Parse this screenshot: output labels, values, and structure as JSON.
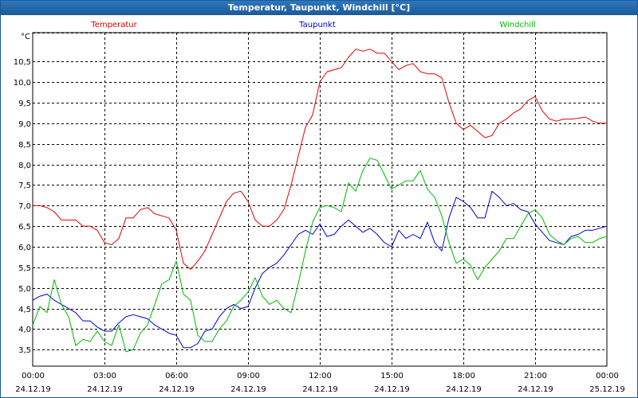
{
  "window": {
    "title": "Temperatur, Taupunkt, Windchill [°C]"
  },
  "chart_data": {
    "type": "line",
    "title": "Temperatur, Taupunkt, Windchill [°C]",
    "ylabel": "°C",
    "ylim": [
      3.1,
      11.2
    ],
    "yticks": [
      3.5,
      4.0,
      4.5,
      5.0,
      5.5,
      6.0,
      6.5,
      7.0,
      7.5,
      8.0,
      8.5,
      9.0,
      9.5,
      10.0,
      10.5
    ],
    "ytick_labels": [
      "3,5",
      "4,0",
      "4,5",
      "5,0",
      "5,5",
      "6,0",
      "6,5",
      "7,0",
      "7,5",
      "8,0",
      "8,5",
      "9,0",
      "9,5",
      "10,0",
      "10,5"
    ],
    "xlim": [
      0,
      24
    ],
    "xticks": [
      0,
      3,
      6,
      9,
      12,
      15,
      18,
      21,
      24
    ],
    "xtick_time_labels": [
      "00:00",
      "03:00",
      "06:00",
      "09:00",
      "12:00",
      "15:00",
      "18:00",
      "21:00",
      "00:00"
    ],
    "xtick_date_labels": [
      "24.12.19",
      "24.12.19",
      "24.12.19",
      "24.12.19",
      "24.12.19",
      "24.12.19",
      "24.12.19",
      "24.12.19",
      "25.12.19"
    ],
    "grid": true,
    "series": [
      {
        "name": "Temperatur",
        "color": "#dd0000",
        "x": [
          0,
          0.3,
          0.6,
          0.9,
          1.2,
          1.5,
          1.8,
          2.1,
          2.4,
          2.7,
          3.0,
          3.3,
          3.6,
          3.9,
          4.2,
          4.5,
          4.8,
          5.1,
          5.4,
          5.7,
          6.0,
          6.3,
          6.6,
          6.9,
          7.2,
          7.5,
          7.8,
          8.1,
          8.4,
          8.7,
          9.0,
          9.3,
          9.6,
          9.9,
          10.2,
          10.5,
          10.8,
          11.1,
          11.4,
          11.7,
          12.0,
          12.3,
          12.6,
          12.9,
          13.2,
          13.5,
          13.8,
          14.1,
          14.4,
          14.7,
          15.0,
          15.3,
          15.6,
          15.9,
          16.2,
          16.5,
          16.8,
          17.1,
          17.4,
          17.7,
          18.0,
          18.3,
          18.6,
          18.9,
          19.2,
          19.5,
          19.8,
          20.1,
          20.4,
          20.7,
          21.0,
          21.3,
          21.6,
          21.9,
          22.2,
          22.5,
          22.8,
          23.1,
          23.4,
          23.7,
          24.0
        ],
        "values": [
          7.0,
          7.0,
          6.95,
          6.85,
          6.65,
          6.65,
          6.65,
          6.5,
          6.5,
          6.4,
          6.1,
          6.05,
          6.2,
          6.7,
          6.7,
          6.9,
          6.95,
          6.8,
          6.75,
          6.7,
          6.4,
          5.6,
          5.45,
          5.65,
          5.9,
          6.3,
          6.7,
          7.1,
          7.3,
          7.35,
          7.1,
          6.65,
          6.5,
          6.5,
          6.65,
          6.9,
          7.5,
          8.2,
          8.9,
          9.2,
          10.0,
          10.25,
          10.3,
          10.35,
          10.6,
          10.8,
          10.75,
          10.8,
          10.7,
          10.7,
          10.5,
          10.3,
          10.4,
          10.45,
          10.25,
          10.2,
          10.2,
          10.1,
          9.5,
          9.0,
          8.85,
          8.95,
          8.8,
          8.65,
          8.7,
          9.0,
          9.1,
          9.25,
          9.35,
          9.55,
          9.65,
          9.3,
          9.1,
          9.05,
          9.1,
          9.1,
          9.12,
          9.15,
          9.05,
          9.0,
          9.0
        ]
      },
      {
        "name": "Taupunkt",
        "color": "#0000cc",
        "x": [
          0,
          0.3,
          0.6,
          0.9,
          1.2,
          1.5,
          1.8,
          2.1,
          2.4,
          2.7,
          3.0,
          3.3,
          3.6,
          3.9,
          4.2,
          4.5,
          4.8,
          5.1,
          5.4,
          5.7,
          6.0,
          6.3,
          6.6,
          6.9,
          7.2,
          7.5,
          7.8,
          8.1,
          8.4,
          8.7,
          9.0,
          9.3,
          9.6,
          9.9,
          10.2,
          10.5,
          10.8,
          11.1,
          11.4,
          11.7,
          12.0,
          12.3,
          12.6,
          12.9,
          13.2,
          13.5,
          13.8,
          14.1,
          14.4,
          14.7,
          15.0,
          15.3,
          15.6,
          15.9,
          16.2,
          16.5,
          16.8,
          17.1,
          17.4,
          17.7,
          18.0,
          18.3,
          18.6,
          18.9,
          19.2,
          19.5,
          19.8,
          20.1,
          20.4,
          20.7,
          21.0,
          21.3,
          21.6,
          21.9,
          22.2,
          22.5,
          22.8,
          23.1,
          23.4,
          23.7,
          24.0
        ],
        "values": [
          4.7,
          4.8,
          4.85,
          4.7,
          4.6,
          4.5,
          4.4,
          4.2,
          4.2,
          4.05,
          3.95,
          3.95,
          4.15,
          4.3,
          4.35,
          4.3,
          4.25,
          4.1,
          4.0,
          3.9,
          3.85,
          3.55,
          3.55,
          3.65,
          3.95,
          4.0,
          4.3,
          4.5,
          4.6,
          4.5,
          4.55,
          5.0,
          5.35,
          5.5,
          5.6,
          5.8,
          6.05,
          6.3,
          6.4,
          6.3,
          6.55,
          6.25,
          6.3,
          6.5,
          6.65,
          6.5,
          6.35,
          6.45,
          6.3,
          6.1,
          6.0,
          6.4,
          6.2,
          6.3,
          6.2,
          6.6,
          6.1,
          5.9,
          6.7,
          7.2,
          7.1,
          6.95,
          6.7,
          6.7,
          7.35,
          7.2,
          7.0,
          7.05,
          6.9,
          6.85,
          6.55,
          6.35,
          6.15,
          6.1,
          6.05,
          6.25,
          6.3,
          6.4,
          6.4,
          6.45,
          6.5
        ]
      },
      {
        "name": "Windchill",
        "color": "#00bb00",
        "x": [
          0,
          0.3,
          0.6,
          0.9,
          1.2,
          1.5,
          1.8,
          2.1,
          2.4,
          2.7,
          3.0,
          3.3,
          3.6,
          3.9,
          4.2,
          4.5,
          4.8,
          5.1,
          5.4,
          5.7,
          6.0,
          6.3,
          6.6,
          6.9,
          7.2,
          7.5,
          7.8,
          8.1,
          8.4,
          8.7,
          9.0,
          9.3,
          9.6,
          9.9,
          10.2,
          10.5,
          10.8,
          11.1,
          11.4,
          11.7,
          12.0,
          12.3,
          12.6,
          12.9,
          13.2,
          13.5,
          13.8,
          14.1,
          14.4,
          14.7,
          15.0,
          15.3,
          15.6,
          15.9,
          16.2,
          16.5,
          16.8,
          17.1,
          17.4,
          17.7,
          18.0,
          18.3,
          18.6,
          18.9,
          19.2,
          19.5,
          19.8,
          20.1,
          20.4,
          20.7,
          21.0,
          21.3,
          21.6,
          21.9,
          22.2,
          22.5,
          22.8,
          23.1,
          23.4,
          23.7,
          24.0
        ],
        "values": [
          4.1,
          4.55,
          4.4,
          5.2,
          4.6,
          4.3,
          3.6,
          3.75,
          3.7,
          3.95,
          3.7,
          3.6,
          4.1,
          3.45,
          3.5,
          3.9,
          4.1,
          4.6,
          5.1,
          5.2,
          5.65,
          4.85,
          4.7,
          3.85,
          3.7,
          3.7,
          4.0,
          4.2,
          4.55,
          4.7,
          4.9,
          5.25,
          4.8,
          4.6,
          4.7,
          4.5,
          4.4,
          5.1,
          5.9,
          6.6,
          6.95,
          7.0,
          6.95,
          6.85,
          7.55,
          7.35,
          7.85,
          8.15,
          8.1,
          7.75,
          7.4,
          7.5,
          7.6,
          7.6,
          7.85,
          7.4,
          7.2,
          6.75,
          6.1,
          5.6,
          5.7,
          5.55,
          5.2,
          5.5,
          5.7,
          5.9,
          6.2,
          6.2,
          6.5,
          6.8,
          6.9,
          6.7,
          6.3,
          6.15,
          6.05,
          6.2,
          6.25,
          6.1,
          6.1,
          6.2,
          6.25
        ]
      }
    ]
  }
}
